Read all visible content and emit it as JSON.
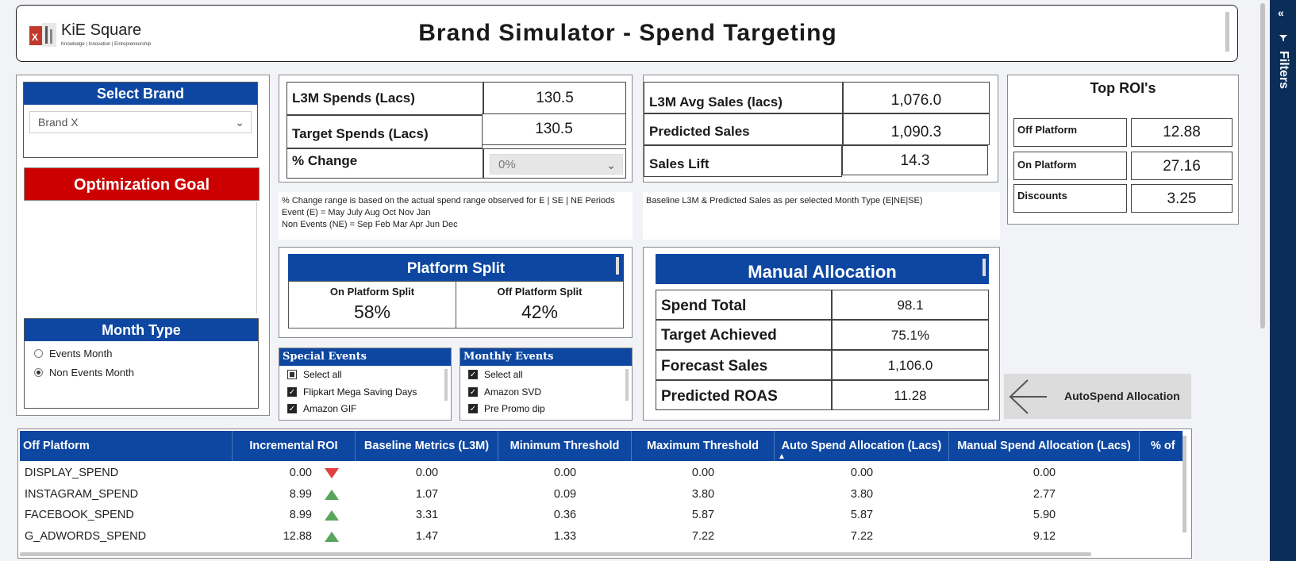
{
  "header": {
    "logo_text": "KiE Square",
    "logo_tagline": "Knowledge | Innovation | Entrepreneurship",
    "title": "Brand Simulator - Spend Targeting"
  },
  "brand_select": {
    "title": "Select Brand",
    "value": "Brand X"
  },
  "optimization_goal": "Optimization Goal",
  "month_type": {
    "title": "Month Type",
    "options": [
      {
        "label": "Events Month",
        "selected": false
      },
      {
        "label": "Non Events Month",
        "selected": true
      }
    ]
  },
  "spend_kpis": {
    "l3m_spends_label": "L3M Spends (Lacs)",
    "l3m_spends_value": "130.5",
    "target_spends_label": "Target Spends (Lacs)",
    "target_spends_value": "130.5",
    "pct_change_label": "% Change",
    "pct_change_value": "0%"
  },
  "sales_kpis": {
    "l3m_avg_sales_label": "L3M Avg Sales (lacs)",
    "l3m_avg_sales_value": "1,076.0",
    "predicted_sales_label": "Predicted Sales",
    "predicted_sales_value": "1,090.3",
    "sales_lift_label": "Sales Lift",
    "sales_lift_value": "14.3"
  },
  "top_roi": {
    "title": "Top ROI's",
    "rows": [
      {
        "label": "Off Platform",
        "value": "12.88"
      },
      {
        "label": "On Platform",
        "value": "27.16"
      },
      {
        "label": "Discounts",
        "value": "3.25"
      }
    ]
  },
  "notes": {
    "left_line1": "% Change range is based on the actual spend range observed for E | SE | NE  Periods",
    "left_line2": "Event (E) =  May July Aug Oct Nov Jan",
    "left_line3": "Non Events (NE) = Sep Feb Mar Apr Jun Dec",
    "right": "Baseline L3M & Predicted Sales as per selected Month Type      (E|NE|SE)"
  },
  "platform_split": {
    "title": "Platform Split",
    "on_label": "On Platform Split",
    "on_value": "58%",
    "off_label": "Off Platform Split",
    "off_value": "42%"
  },
  "manual_allocation": {
    "title": "Manual Allocation",
    "rows": [
      {
        "label": "Spend Total",
        "value": "98.1"
      },
      {
        "label": "Target Achieved",
        "value": "75.1%"
      },
      {
        "label": "Forecast Sales",
        "value": "1,106.0"
      },
      {
        "label": "Predicted ROAS",
        "value": "11.28"
      }
    ]
  },
  "special_events": {
    "title": "Special Events",
    "items": [
      "Select all",
      "Flipkart Mega Saving Days",
      "Amazon GIF"
    ]
  },
  "monthly_events": {
    "title": "Monthly Events",
    "items": [
      "Select all",
      "Amazon SVD",
      "Pre Promo dip"
    ]
  },
  "autospend_button": "AutoSpend Allocation",
  "table": {
    "headers": [
      "Off Platform",
      "Incremental ROI",
      "Baseline Metrics (L3M)",
      "Minimum Threshold",
      "Maximum Threshold",
      "Auto Spend Allocation (Lacs)",
      "Manual Spend Allocation (Lacs)",
      "% of"
    ],
    "rows": [
      {
        "name": "DISPLAY_SPEND",
        "roi": "0.00",
        "trend": "down",
        "baseline": "0.00",
        "min": "0.00",
        "max": "0.00",
        "auto": "0.00",
        "manual": "0.00"
      },
      {
        "name": "INSTAGRAM_SPEND",
        "roi": "8.99",
        "trend": "up",
        "baseline": "1.07",
        "min": "0.09",
        "max": "3.80",
        "auto": "3.80",
        "manual": "2.77"
      },
      {
        "name": "FACEBOOK_SPEND",
        "roi": "8.99",
        "trend": "up",
        "baseline": "3.31",
        "min": "0.36",
        "max": "5.87",
        "auto": "5.87",
        "manual": "5.90"
      },
      {
        "name": "G_ADWORDS_SPEND",
        "roi": "12.88",
        "trend": "up",
        "baseline": "1.47",
        "min": "1.33",
        "max": "7.22",
        "auto": "7.22",
        "manual": "9.12"
      }
    ]
  },
  "filters_label": "Filters",
  "colors": {
    "brand_blue": "#0d47a1",
    "goal_red": "#cc0000",
    "up_green": "#58a55c",
    "down_red": "#e04040",
    "filters_navy": "#0b2e59"
  }
}
